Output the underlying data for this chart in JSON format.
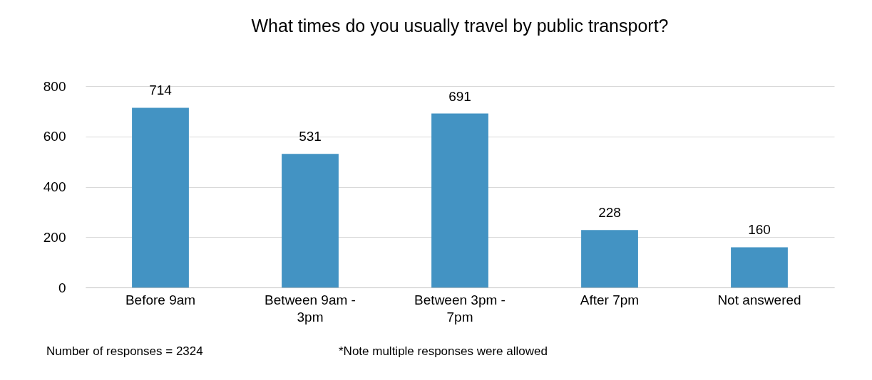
{
  "chart_data": {
    "type": "bar",
    "title": "What times do you usually travel by public transport?",
    "categories": [
      "Before 9am",
      "Between 9am - 3pm",
      "Between 3pm - 7pm",
      "After 7pm",
      "Not answered"
    ],
    "values": [
      714,
      531,
      691,
      228,
      160
    ],
    "color": "#4393c3",
    "ylim": [
      0,
      800
    ],
    "yticks": [
      0,
      200,
      400,
      600,
      800
    ],
    "grid": "y",
    "data_labels": true,
    "annotations": [
      "Number of responses = 2324",
      "*Note multiple responses were allowed"
    ]
  }
}
